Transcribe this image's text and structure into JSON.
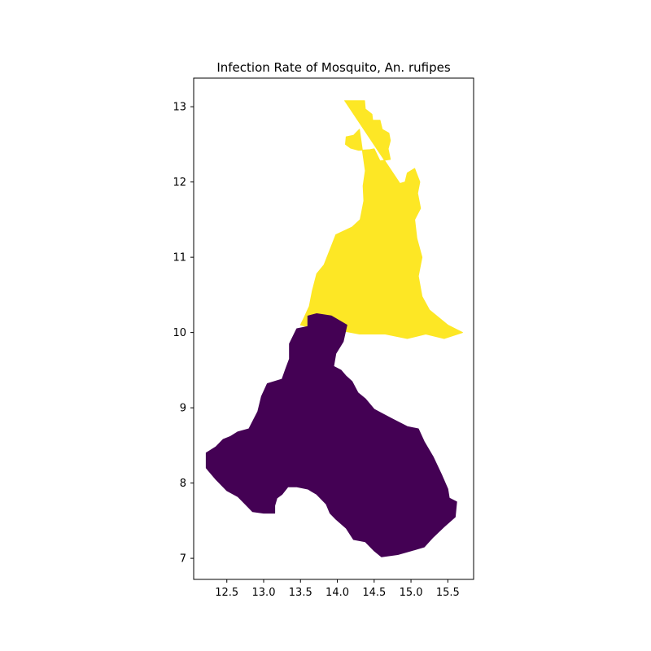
{
  "chart_data": {
    "type": "choropleth",
    "title": "Infection Rate of Mosquito, An. rufipes",
    "xlabel": "",
    "ylabel": "",
    "xlim": [
      12.05,
      15.85
    ],
    "ylim": [
      6.72,
      13.38
    ],
    "xticks": [
      "12.5",
      "13.0",
      "13.5",
      "14.0",
      "14.5",
      "15.0",
      "15.5"
    ],
    "yticks": [
      "7",
      "8",
      "9",
      "10",
      "11",
      "12",
      "13"
    ],
    "grid": false,
    "colormap": "viridis",
    "regions": [
      {
        "id": "north",
        "color": "#fde725",
        "coords": [
          [
            14.1,
            13.08
          ],
          [
            14.37,
            13.08
          ],
          [
            14.38,
            12.97
          ],
          [
            14.47,
            12.9
          ],
          [
            14.48,
            12.82
          ],
          [
            14.58,
            12.82
          ],
          [
            14.61,
            12.7
          ],
          [
            14.7,
            12.65
          ],
          [
            14.72,
            12.55
          ],
          [
            14.69,
            12.44
          ],
          [
            14.72,
            12.3
          ],
          [
            14.58,
            12.28
          ],
          [
            14.5,
            12.44
          ],
          [
            14.44,
            12.43
          ],
          [
            14.29,
            12.42
          ],
          [
            14.18,
            12.45
          ],
          [
            14.11,
            12.5
          ],
          [
            14.12,
            12.6
          ],
          [
            14.22,
            12.62
          ],
          [
            14.3,
            12.7
          ],
          [
            14.38,
            12.15
          ],
          [
            14.35,
            11.95
          ],
          [
            14.36,
            11.75
          ],
          [
            14.31,
            11.5
          ],
          [
            14.2,
            11.4
          ],
          [
            13.98,
            11.3
          ],
          [
            13.92,
            11.15
          ],
          [
            13.82,
            10.9
          ],
          [
            13.72,
            10.78
          ],
          [
            13.66,
            10.55
          ],
          [
            13.62,
            10.35
          ],
          [
            13.55,
            10.2
          ],
          [
            13.5,
            10.1
          ],
          [
            13.58,
            10.08
          ],
          [
            13.72,
            10.12
          ],
          [
            13.92,
            10.05
          ],
          [
            14.3,
            9.98
          ],
          [
            14.65,
            9.98
          ],
          [
            14.95,
            9.92
          ],
          [
            15.2,
            9.98
          ],
          [
            15.45,
            9.92
          ],
          [
            15.7,
            10.0
          ],
          [
            15.5,
            10.1
          ],
          [
            15.25,
            10.3
          ],
          [
            15.15,
            10.48
          ],
          [
            15.1,
            10.75
          ],
          [
            15.15,
            11.0
          ],
          [
            15.08,
            11.25
          ],
          [
            15.05,
            11.5
          ],
          [
            15.13,
            11.65
          ],
          [
            15.09,
            11.85
          ],
          [
            15.12,
            12.0
          ],
          [
            15.05,
            12.18
          ],
          [
            14.95,
            12.12
          ],
          [
            14.92,
            12.0
          ],
          [
            14.85,
            11.98
          ]
        ]
      },
      {
        "id": "south",
        "color": "#440154",
        "coords": [
          [
            13.6,
            10.22
          ],
          [
            13.72,
            10.25
          ],
          [
            13.92,
            10.22
          ],
          [
            14.13,
            10.1
          ],
          [
            14.08,
            9.88
          ],
          [
            13.98,
            9.72
          ],
          [
            13.95,
            9.55
          ],
          [
            14.05,
            9.5
          ],
          [
            14.12,
            9.42
          ],
          [
            14.2,
            9.35
          ],
          [
            14.28,
            9.2
          ],
          [
            14.38,
            9.12
          ],
          [
            14.5,
            8.98
          ],
          [
            14.75,
            8.85
          ],
          [
            14.95,
            8.75
          ],
          [
            15.1,
            8.72
          ],
          [
            15.18,
            8.55
          ],
          [
            15.3,
            8.35
          ],
          [
            15.42,
            8.1
          ],
          [
            15.5,
            7.92
          ],
          [
            15.52,
            7.8
          ],
          [
            15.62,
            7.75
          ],
          [
            15.6,
            7.55
          ],
          [
            15.45,
            7.42
          ],
          [
            15.3,
            7.28
          ],
          [
            15.18,
            7.15
          ],
          [
            15.0,
            7.1
          ],
          [
            14.82,
            7.05
          ],
          [
            14.6,
            7.02
          ],
          [
            14.5,
            7.1
          ],
          [
            14.38,
            7.22
          ],
          [
            14.22,
            7.25
          ],
          [
            14.12,
            7.4
          ],
          [
            13.98,
            7.52
          ],
          [
            13.9,
            7.6
          ],
          [
            13.85,
            7.72
          ],
          [
            13.72,
            7.85
          ],
          [
            13.6,
            7.92
          ],
          [
            13.45,
            7.95
          ],
          [
            13.33,
            7.95
          ],
          [
            13.25,
            7.85
          ],
          [
            13.18,
            7.8
          ],
          [
            13.15,
            7.7
          ],
          [
            13.15,
            7.6
          ],
          [
            13.0,
            7.6
          ],
          [
            12.85,
            7.62
          ],
          [
            12.75,
            7.72
          ],
          [
            12.65,
            7.82
          ],
          [
            12.5,
            7.9
          ],
          [
            12.35,
            8.05
          ],
          [
            12.22,
            8.2
          ],
          [
            12.22,
            8.4
          ],
          [
            12.35,
            8.48
          ],
          [
            12.45,
            8.58
          ],
          [
            12.55,
            8.62
          ],
          [
            12.65,
            8.68
          ],
          [
            12.8,
            8.72
          ],
          [
            12.92,
            8.95
          ],
          [
            12.97,
            9.15
          ],
          [
            13.05,
            9.32
          ],
          [
            13.25,
            9.38
          ],
          [
            13.3,
            9.52
          ],
          [
            13.35,
            9.65
          ],
          [
            13.35,
            9.85
          ],
          [
            13.45,
            10.05
          ],
          [
            13.6,
            10.08
          ]
        ]
      }
    ]
  }
}
